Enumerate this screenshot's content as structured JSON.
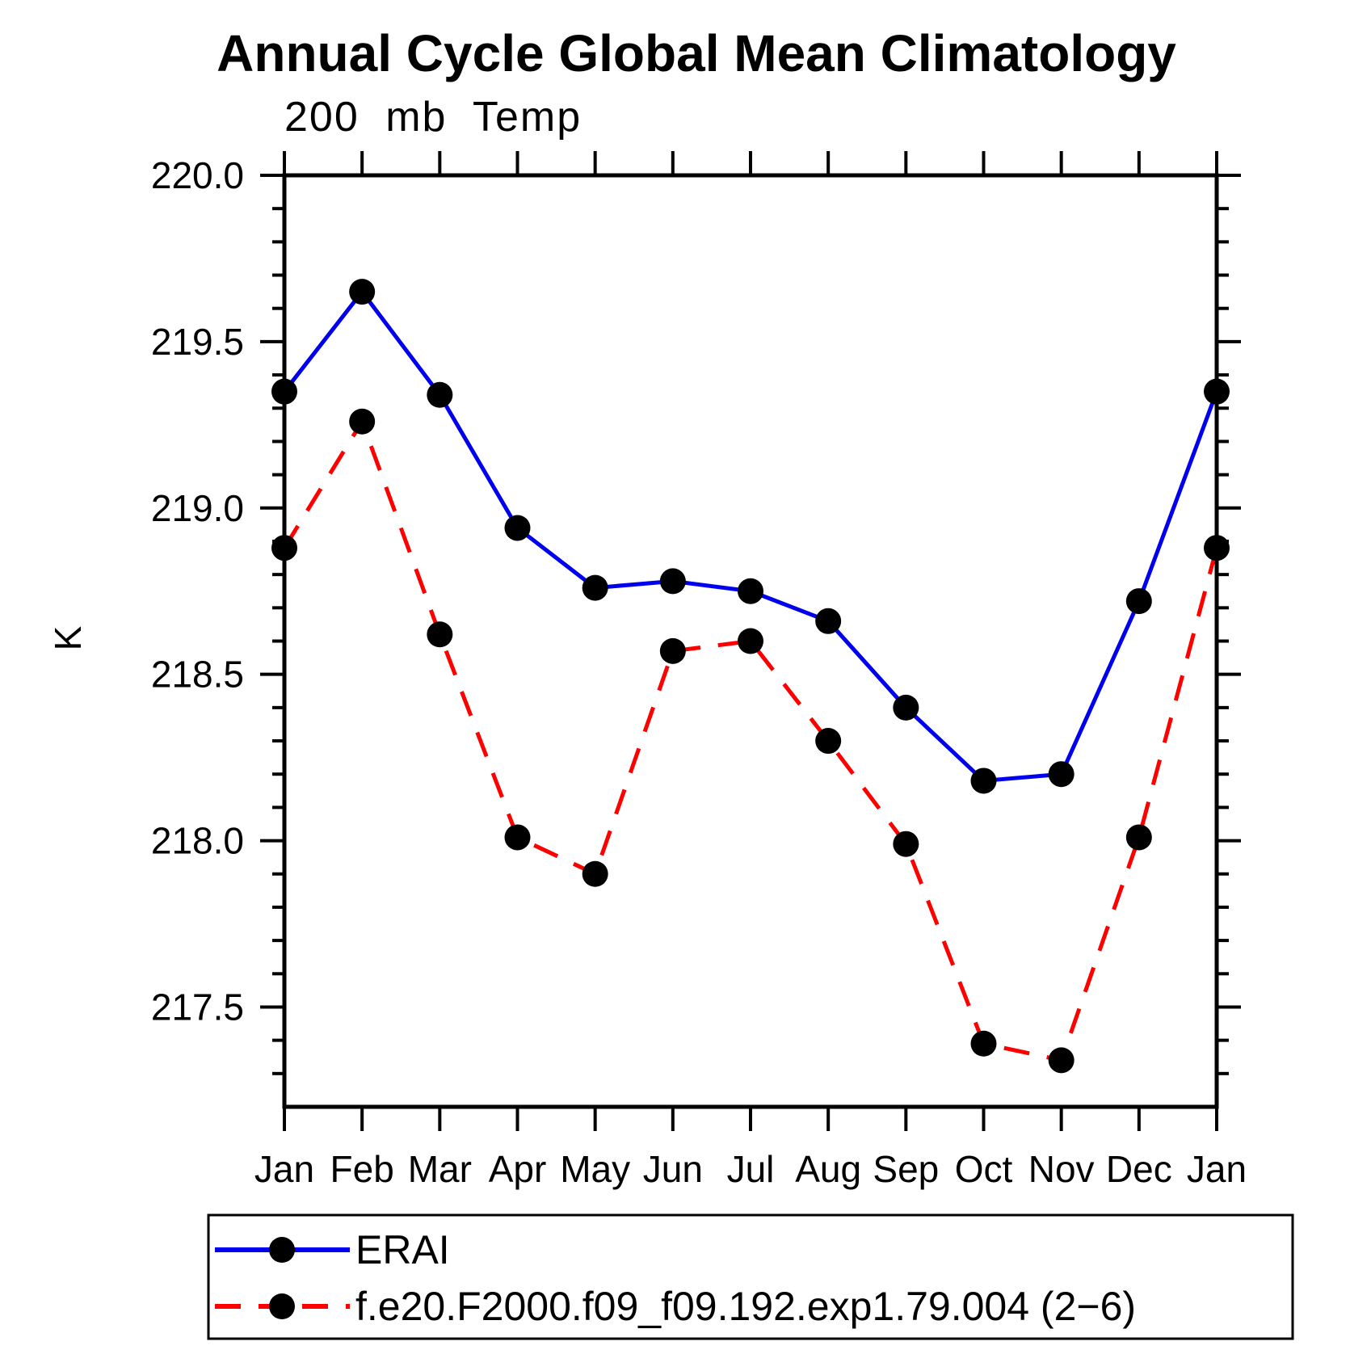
{
  "title": "Annual Cycle Global Mean Climatology",
  "subtitle": "200 mb Temp",
  "y_axis_label": "K",
  "chart_data": {
    "type": "line",
    "title": "Annual Cycle Global Mean Climatology",
    "subtitle": "200 mb Temp",
    "ylabel": "K",
    "xlabel": "",
    "grid": false,
    "legend_position": "bottom",
    "ylim": [
      217.2,
      220.0
    ],
    "y_major_ticks": [
      220.0,
      219.5,
      219.0,
      218.5,
      218.0,
      217.5
    ],
    "y_tick_labels": [
      "220.0",
      "219.5",
      "219.0",
      "218.5",
      "218.0",
      "217.5"
    ],
    "y_minor_tick_step": 0.1,
    "x_tick_labels": [
      "Jan",
      "Feb",
      "Mar",
      "Apr",
      "May",
      "Jun",
      "Jul",
      "Aug",
      "Sep",
      "Oct",
      "Nov",
      "Dec",
      "Jan"
    ],
    "series": [
      {
        "name": "ERAI",
        "color": "#0000ee",
        "line_style": "solid",
        "marker": "circle",
        "marker_color": "#000000",
        "values": [
          219.35,
          219.65,
          219.34,
          218.94,
          218.76,
          218.78,
          218.75,
          218.66,
          218.4,
          218.18,
          218.2,
          218.72,
          219.35
        ]
      },
      {
        "name": "f.e20.F2000.f09_f09.192.exp1.79.004 (2−6)",
        "color": "#ff0000",
        "line_style": "dashed",
        "marker": "circle",
        "marker_color": "#000000",
        "values": [
          218.88,
          219.26,
          218.62,
          218.01,
          217.9,
          218.57,
          218.6,
          218.3,
          217.99,
          217.39,
          217.34,
          218.01,
          218.88
        ]
      }
    ]
  },
  "colors": {
    "axis": "#000000",
    "background": "#ffffff",
    "erai_line": "#0000ee",
    "model_line": "#ff0000",
    "marker": "#000000"
  }
}
